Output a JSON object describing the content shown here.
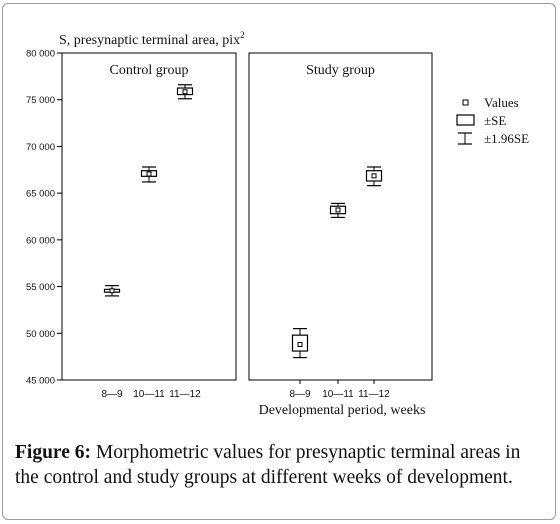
{
  "chart_data": {
    "type": "box",
    "ylabel": "S, presynaptic terminal area, pix",
    "ylabel_sup": "2",
    "xlabel": "Developmental period, weeks",
    "ylim": [
      45000,
      80000
    ],
    "y_ticks": [
      45000,
      50000,
      55000,
      60000,
      65000,
      70000,
      75000,
      80000
    ],
    "y_tick_labels": [
      "45 000",
      "50 000",
      "55 000",
      "60 000",
      "65 000",
      "70 000",
      "75 000",
      "80 000"
    ],
    "categories": [
      "8—9",
      "10—11",
      "11—12"
    ],
    "panels": [
      {
        "title": "Control group",
        "values": [
          54550,
          67050,
          75850
        ],
        "se": [
          [
            54400,
            54700
          ],
          [
            66800,
            67400
          ],
          [
            75550,
            76250
          ]
        ],
        "ci196": [
          [
            54000,
            55100
          ],
          [
            66200,
            67800
          ],
          [
            75100,
            76600
          ]
        ]
      },
      {
        "title": "Study group",
        "values": [
          48800,
          63200,
          66850
        ],
        "se": [
          [
            48100,
            49800
          ],
          [
            62800,
            63600
          ],
          [
            66300,
            67400
          ]
        ],
        "ci196": [
          [
            47400,
            50500
          ],
          [
            62400,
            63900
          ],
          [
            65800,
            67800
          ]
        ]
      }
    ],
    "legend": {
      "position": "right",
      "items": [
        "Values",
        "±SE",
        "±1.96SE"
      ]
    },
    "grid": false
  },
  "caption": {
    "label": "Figure 6:",
    "text": " Morphometric values for presynaptic terminal areas in the control and study groups at different weeks of development."
  }
}
